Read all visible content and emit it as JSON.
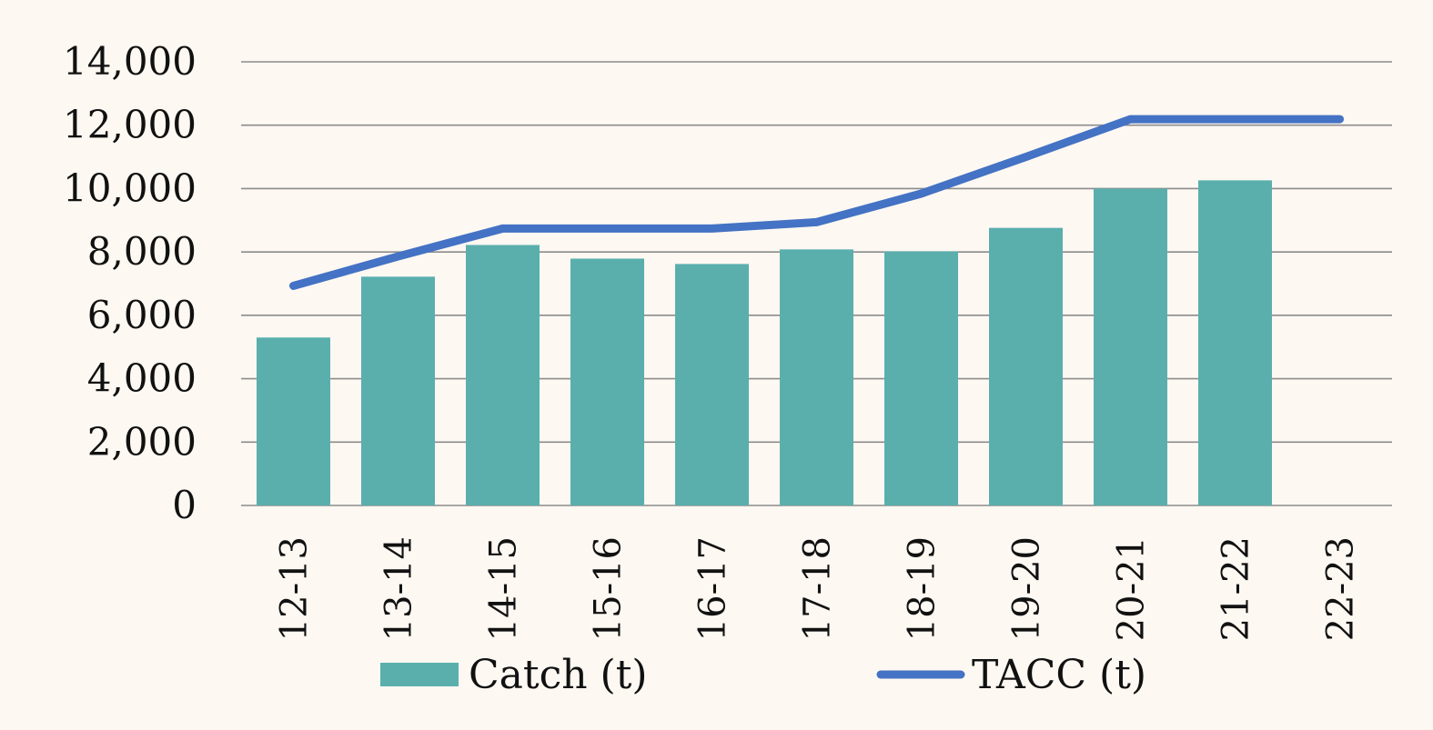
{
  "chart_data": {
    "type": "bar",
    "categories": [
      "12-13",
      "13-14",
      "14-15",
      "15-16",
      "16-17",
      "17-18",
      "18-19",
      "19-20",
      "20-21",
      "21-22",
      "22-23"
    ],
    "series": [
      {
        "name": "Catch (t)",
        "type": "bar",
        "color": "#5aafad",
        "values": [
          5300,
          7220,
          8220,
          7790,
          7620,
          8080,
          8020,
          8760,
          10000,
          10260,
          null
        ]
      },
      {
        "name": "TACC (t)",
        "type": "line",
        "color": "#4472c4",
        "values": [
          6930,
          7860,
          8740,
          8740,
          8740,
          8940,
          9840,
          11000,
          12190,
          12190,
          12190
        ]
      }
    ],
    "ylim": [
      0,
      14000
    ],
    "yticks": [
      0,
      2000,
      4000,
      6000,
      8000,
      10000,
      12000,
      14000
    ],
    "ytick_labels": [
      "0",
      "2,000",
      "4,000",
      "6,000",
      "8,000",
      "10,000",
      "12,000",
      "14,000"
    ],
    "grid": true,
    "legend_position": "bottom",
    "title": "",
    "xlabel": "",
    "ylabel": ""
  }
}
